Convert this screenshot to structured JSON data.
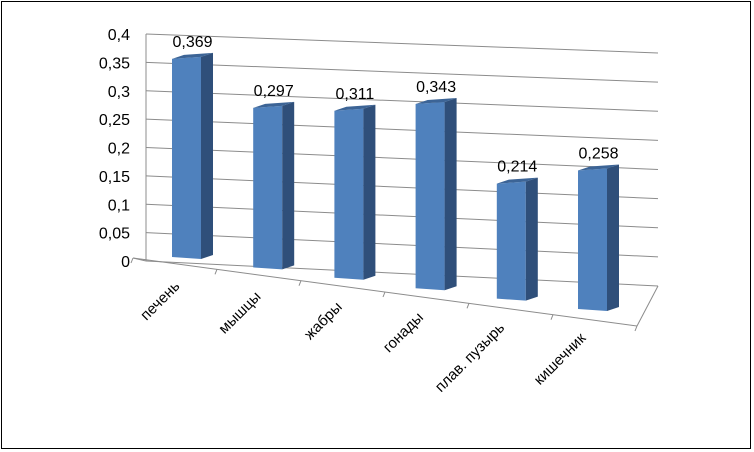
{
  "chart_data": {
    "type": "bar",
    "style": "3d-perspective-columns",
    "categories": [
      "печень",
      "мышцы",
      "жабры",
      "гонады",
      "плав. пузырь",
      "кишечник"
    ],
    "values": [
      0.369,
      0.297,
      0.311,
      0.343,
      0.214,
      0.258
    ],
    "data_labels": [
      "0,369",
      "0,297",
      "0,311",
      "0,343",
      "0,214",
      "0,258"
    ],
    "y_ticks": [
      "0",
      "0,05",
      "0,1",
      "0,15",
      "0,2",
      "0,25",
      "0,3",
      "0,35",
      "0,4"
    ],
    "ylim": [
      0,
      0.4
    ],
    "ystep": 0.05,
    "grid": true,
    "legend": "none",
    "title": "",
    "xlabel": "",
    "ylabel": "",
    "colors": {
      "bar_front": "#4F81BD",
      "bar_side": "#2F4F7A",
      "bar_top": "#3C6496",
      "grid": "#8C8C8C",
      "frame": "#000000"
    }
  }
}
